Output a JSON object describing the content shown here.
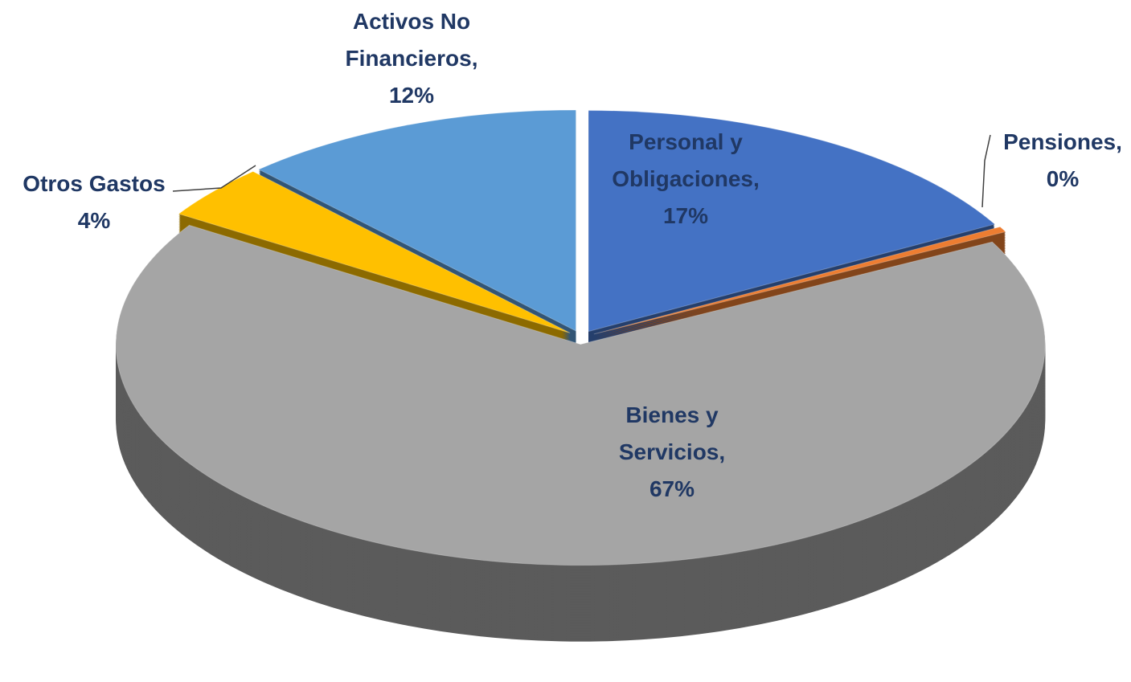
{
  "chart_data": {
    "type": "pie",
    "categories": [
      "Personal y Obligaciones,",
      "Pensiones,",
      "Bienes y Servicios,",
      "Otros Gastos",
      "Activos No Financieros,"
    ],
    "values": [
      17,
      0.4,
      67,
      4,
      12
    ],
    "value_labels": [
      "17%",
      "0%",
      "67%",
      "4%",
      "12%"
    ],
    "colors": [
      "#4472c4",
      "#ed7d31",
      "#a5a5a5",
      "#ffc000",
      "#5b9bd5"
    ]
  }
}
